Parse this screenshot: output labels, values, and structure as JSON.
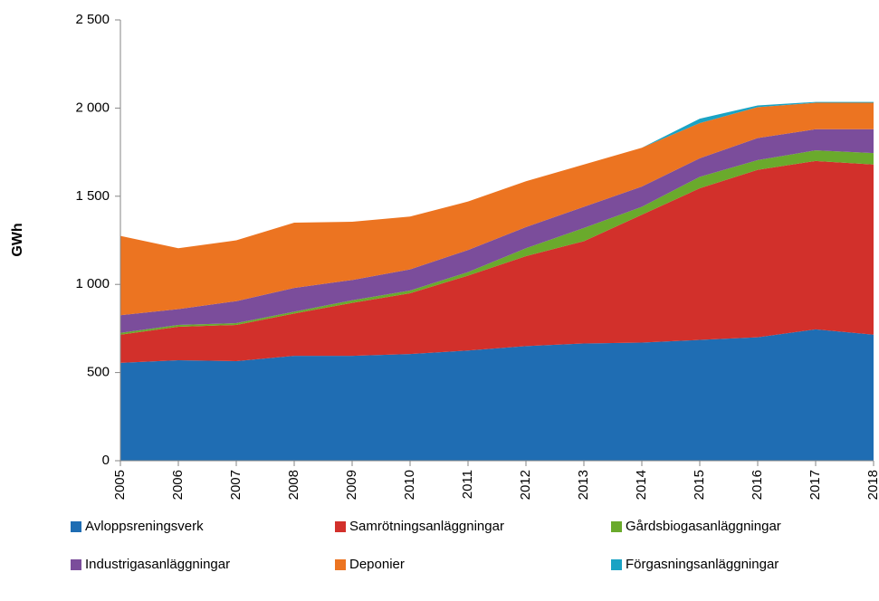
{
  "chart_data": {
    "type": "stacked_area",
    "y_label": "GWh",
    "categories": [
      "2005",
      "2006",
      "2007",
      "2008",
      "2009",
      "2010",
      "2011",
      "2012",
      "2013",
      "2014",
      "2015",
      "2016",
      "2017",
      "2018"
    ],
    "series": [
      {
        "name": "Avloppsreningsverk",
        "color": "#1f6db3",
        "values": [
          555,
          570,
          565,
          595,
          595,
          605,
          625,
          650,
          665,
          670,
          685,
          700,
          745,
          715
        ]
      },
      {
        "name": "Samrötningsanläggningar",
        "color": "#d2302b",
        "values": [
          160,
          190,
          205,
          240,
          300,
          345,
          425,
          510,
          580,
          725,
          860,
          950,
          955,
          965
        ]
      },
      {
        "name": "Gårdsbiogasanläggningar",
        "color": "#6aaa2c",
        "values": [
          10,
          10,
          10,
          10,
          15,
          15,
          20,
          45,
          75,
          45,
          65,
          55,
          60,
          65
        ]
      },
      {
        "name": "Industrigasanläggningar",
        "color": "#7b4d9b",
        "values": [
          100,
          90,
          125,
          135,
          115,
          120,
          125,
          120,
          120,
          115,
          105,
          125,
          120,
          135
        ]
      },
      {
        "name": "Deponier",
        "color": "#ec7421",
        "values": [
          450,
          345,
          345,
          370,
          330,
          300,
          275,
          260,
          240,
          220,
          200,
          175,
          150,
          150
        ]
      },
      {
        "name": "Förgasningsanläggningar",
        "color": "#1aa3c4",
        "values": [
          0,
          0,
          0,
          0,
          0,
          0,
          0,
          0,
          0,
          0,
          25,
          10,
          5,
          5
        ]
      }
    ],
    "ylim": [
      0,
      2500
    ],
    "yticks": [
      0,
      500,
      {
        "value": 1000,
        "label": "1 000"
      },
      {
        "value": 1500,
        "label": "1 500"
      },
      {
        "value": 2000,
        "label": "2 000"
      },
      {
        "value": 2500,
        "label": "2 500"
      }
    ],
    "grid": false,
    "legend": "bottom"
  }
}
